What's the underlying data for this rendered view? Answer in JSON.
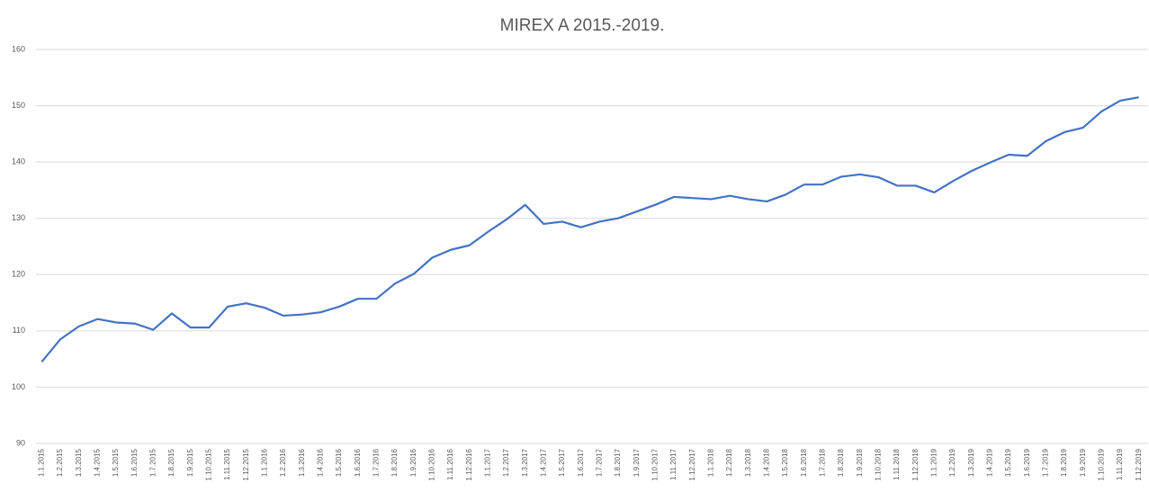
{
  "chart_data": {
    "type": "line",
    "title": "MIREX A 2015.-2019.",
    "categories": [
      "1.1.2015",
      "1.2.2015",
      "1.3.2015",
      "1.4.2015",
      "1.5.2015",
      "1.6.2015",
      "1.7.2015",
      "1.8.2015",
      "1.9.2015",
      "1.10.2015",
      "1.11.2015",
      "1.12.2015",
      "1.1.2016",
      "1.2.2016",
      "1.3.2016",
      "1.4.2016",
      "1.5.2016",
      "1.6.2016",
      "1.7.2016",
      "1.8.2016",
      "1.9.2016",
      "1.10.2016",
      "1.11.2016",
      "1.12.2016",
      "1.1.2017",
      "1.2.2017",
      "1.3.2017",
      "1.4.2017",
      "1.5.2017",
      "1.6.2017",
      "1.7.2017",
      "1.8.2017",
      "1.9.2017",
      "1.10.2017",
      "1.11.2017",
      "1.12.2017",
      "1.1.2018",
      "1.2.2018",
      "1.3.2018",
      "1.4.2018",
      "1.5.2018",
      "1.6.2018",
      "1.7.2018",
      "1.8.2018",
      "1.9.2018",
      "1.10.2018",
      "1.11.2018",
      "1.12.2018",
      "1.1.2019",
      "1.2.2019",
      "1.3.2019",
      "1.4.2019",
      "1.5.2019",
      "1.6.2019",
      "1.7.2019",
      "1.8.2019",
      "1.9.2019",
      "1.10.2019",
      "1.11.2019",
      "1.12.2019"
    ],
    "values": [
      104.5,
      108.5,
      110.8,
      112.1,
      111.5,
      111.3,
      110.2,
      113.1,
      110.6,
      110.6,
      114.3,
      114.9,
      114.1,
      112.7,
      112.9,
      113.3,
      114.3,
      115.7,
      115.7,
      118.4,
      120.1,
      123.0,
      124.4,
      125.2,
      127.6,
      129.8,
      132.4,
      129.0,
      129.4,
      128.4,
      129.4,
      130.0,
      131.2,
      132.4,
      133.8,
      133.6,
      133.4,
      134.0,
      133.4,
      133.0,
      134.2,
      136.0,
      136.0,
      137.4,
      137.8,
      137.3,
      135.8,
      135.8,
      134.6,
      136.6,
      138.4,
      139.9,
      141.3,
      141.1,
      143.7,
      145.3,
      146.1,
      149.0,
      150.9,
      151.5
    ],
    "color": "#4472c4",
    "ylim": [
      90,
      160
    ],
    "yticks": [
      90,
      100,
      110,
      120,
      130,
      140,
      150,
      160
    ],
    "grid": true
  }
}
